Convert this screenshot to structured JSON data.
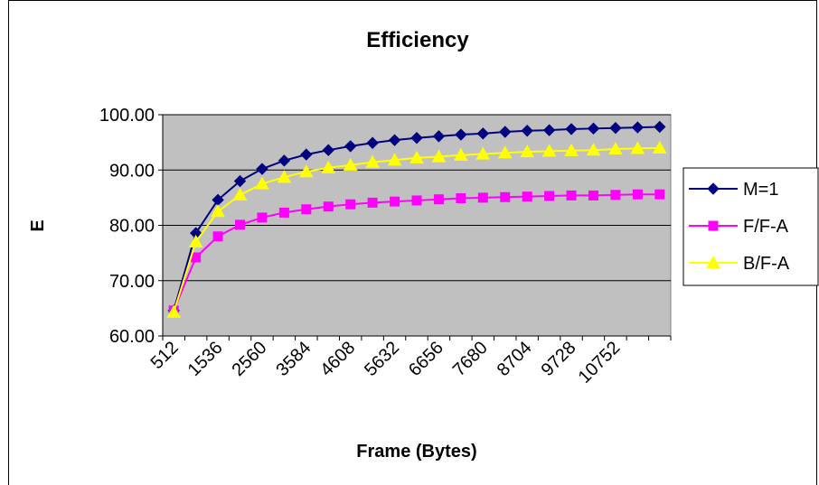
{
  "chart_data": {
    "type": "line",
    "title": "Efficiency",
    "xlabel": "Frame (Bytes)",
    "ylabel": "E",
    "x": [
      512,
      1024,
      1536,
      2048,
      2560,
      3072,
      3584,
      4096,
      4608,
      5120,
      5632,
      6144,
      6656,
      7168,
      7680,
      8192,
      8704,
      9216,
      9728,
      10240,
      10752,
      11264,
      11776
    ],
    "x_tick_labels": [
      "512",
      "1536",
      "2560",
      "3584",
      "4608",
      "5632",
      "6656",
      "7680",
      "8704",
      "9728",
      "10752"
    ],
    "ylim": [
      60,
      100
    ],
    "y_tick_labels": [
      "60.00",
      "70.00",
      "80.00",
      "90.00",
      "100.00"
    ],
    "grid": true,
    "legend_position": "right",
    "plot_background": "#c0c0c0",
    "series": [
      {
        "name": "M=1",
        "color": "#000080",
        "marker": "diamond",
        "values": [
          64.6,
          78.6,
          84.6,
          88.0,
          90.2,
          91.7,
          92.8,
          93.6,
          94.3,
          94.9,
          95.4,
          95.8,
          96.1,
          96.4,
          96.6,
          96.9,
          97.1,
          97.2,
          97.4,
          97.5,
          97.6,
          97.7,
          97.8
        ]
      },
      {
        "name": "F/F-A",
        "color": "#ff00ff",
        "marker": "square",
        "values": [
          64.6,
          74.2,
          78.0,
          80.1,
          81.4,
          82.3,
          82.9,
          83.4,
          83.8,
          84.1,
          84.3,
          84.5,
          84.7,
          84.9,
          85.0,
          85.1,
          85.2,
          85.3,
          85.4,
          85.4,
          85.5,
          85.6,
          85.6
        ]
      },
      {
        "name": "B/F-A",
        "color": "#ffff00",
        "marker": "triangle",
        "values": [
          64.3,
          77.0,
          82.5,
          85.5,
          87.5,
          88.7,
          89.7,
          90.4,
          90.9,
          91.4,
          91.8,
          92.2,
          92.4,
          92.7,
          92.9,
          93.1,
          93.3,
          93.4,
          93.5,
          93.6,
          93.8,
          93.9,
          94.0
        ]
      }
    ]
  }
}
